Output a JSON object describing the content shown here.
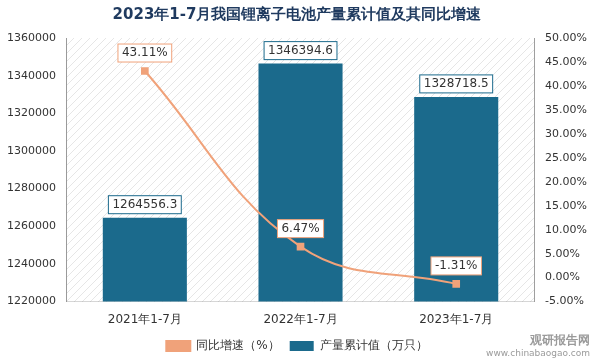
{
  "chart_data": {
    "type": "bar",
    "title": "2023年1-7月我国锂离子电池产量累计值及其同比增速",
    "categories": [
      "2021年1-7月",
      "2022年1-7月",
      "2023年1-7月"
    ],
    "series": [
      {
        "name": "产量累计值（万只）",
        "type": "bar",
        "color": "#1b6a8c",
        "values": [
          1264556.3,
          1346394.6,
          1328718.5
        ]
      },
      {
        "name": "同比增速（%）",
        "type": "line",
        "color": "#f0a27a",
        "marker": "square",
        "axis": "y2",
        "values": [
          43.11,
          6.47,
          -1.31
        ],
        "value_labels": [
          "43.11%",
          "6.47%",
          "-1.31%"
        ]
      }
    ],
    "ylim": [
      1220000,
      1360000
    ],
    "yticks": [
      1220000,
      1240000,
      1260000,
      1280000,
      1300000,
      1320000,
      1340000,
      1360000
    ],
    "y2lim": [
      -5,
      50
    ],
    "y2ticks": [
      {
        "value": -5,
        "label": "-5.00%"
      },
      {
        "value": 0,
        "label": "0.00%"
      },
      {
        "value": 5,
        "label": "5.00%"
      },
      {
        "value": 10,
        "label": "10.00%"
      },
      {
        "value": 15,
        "label": "15.00%"
      },
      {
        "value": 20,
        "label": "20.00%"
      },
      {
        "value": 25,
        "label": "25.00%"
      },
      {
        "value": 30,
        "label": "30.00%"
      },
      {
        "value": 35,
        "label": "35.00%"
      },
      {
        "value": 40,
        "label": "40.00%"
      },
      {
        "value": 45,
        "label": "45.00%"
      },
      {
        "value": 50,
        "label": "50.00%"
      }
    ],
    "grid": false,
    "legend": "bottom",
    "data_labels": true,
    "annotations": [
      "观研报告网",
      "www.chinabaogao.com"
    ]
  }
}
